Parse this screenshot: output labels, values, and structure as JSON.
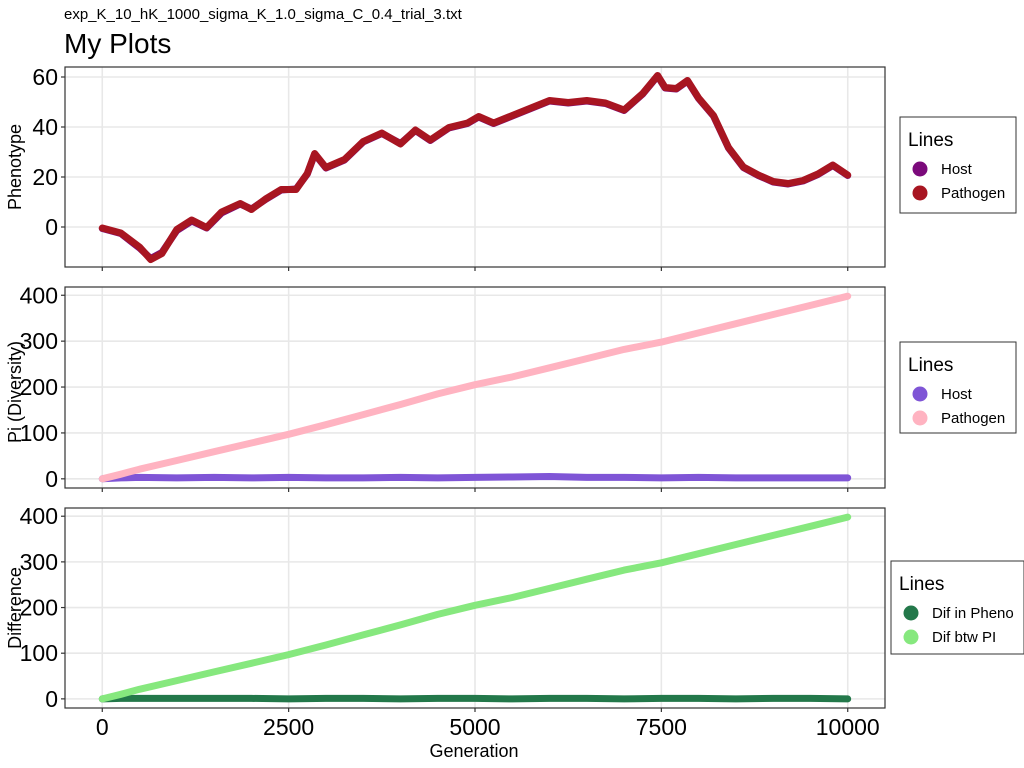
{
  "header": {
    "subtitle": "exp_K_10_hK_1000_sigma_K_1.0_sigma_C_0.4_trial_3.txt",
    "title": "My Plots"
  },
  "chart_data": [
    {
      "type": "line",
      "ylabel": "Phenotype",
      "xlabel": "",
      "xlim": [
        -500,
        10500
      ],
      "ylim": [
        -16,
        64
      ],
      "x_ticks": [
        0,
        2500,
        5000,
        7500,
        10000
      ],
      "y_ticks": [
        0,
        20,
        40,
        60
      ],
      "y_tick_labels": [
        "0",
        "20",
        "40",
        "60"
      ],
      "grid": true,
      "legend": {
        "title": "Lines",
        "position": "right"
      },
      "x": [
        0,
        250,
        500,
        650,
        800,
        1000,
        1200,
        1400,
        1600,
        1850,
        2000,
        2200,
        2400,
        2600,
        2750,
        2850,
        3000,
        3250,
        3500,
        3750,
        4000,
        4200,
        4400,
        4650,
        4900,
        5050,
        5250,
        5500,
        5750,
        6000,
        6250,
        6500,
        6750,
        7000,
        7250,
        7450,
        7550,
        7700,
        7850,
        8000,
        8200,
        8400,
        8600,
        8800,
        9000,
        9200,
        9400,
        9600,
        9800,
        10000
      ],
      "series": [
        {
          "name": "Host",
          "color": "#7B0A7B",
          "values": [
            -0.6,
            -2.6,
            -8.4,
            -12.6,
            -10.2,
            -1.4,
            2.4,
            -0.4,
            5.6,
            9.2,
            7.2,
            11.2,
            14.8,
            15.2,
            21.2,
            29.2,
            23.6,
            26.8,
            34.0,
            37.4,
            33.4,
            38.6,
            34.6,
            39.6,
            41.4,
            44.0,
            41.4,
            44.4,
            47.4,
            50.4,
            49.6,
            50.4,
            49.4,
            46.6,
            53.2,
            60.4,
            55.6,
            55.2,
            58.4,
            51.4,
            44.4,
            31.6,
            23.8,
            20.6,
            18.0,
            17.2,
            18.4,
            21.0,
            24.6,
            20.6
          ]
        },
        {
          "name": "Pathogen",
          "color": "#A81521",
          "values": [
            -0.4,
            -2.4,
            -8.0,
            -13.0,
            -10.6,
            -1.0,
            2.8,
            -0.2,
            6.0,
            9.4,
            7.0,
            11.4,
            15.0,
            15.0,
            21.4,
            29.4,
            23.8,
            27.0,
            34.2,
            37.6,
            33.2,
            38.8,
            34.8,
            39.8,
            41.6,
            44.2,
            41.6,
            44.6,
            47.6,
            50.6,
            49.8,
            50.6,
            49.6,
            46.8,
            53.4,
            60.6,
            55.8,
            55.4,
            58.6,
            51.6,
            44.6,
            31.8,
            24.0,
            20.8,
            18.2,
            17.4,
            18.6,
            21.2,
            24.8,
            20.8
          ]
        }
      ]
    },
    {
      "type": "line",
      "ylabel": "Pi (Diversity)",
      "xlabel": "",
      "xlim": [
        -500,
        10500
      ],
      "ylim": [
        -20,
        418
      ],
      "x_ticks": [
        0,
        2500,
        5000,
        7500,
        10000
      ],
      "y_ticks": [
        0,
        100,
        200,
        300,
        400
      ],
      "y_tick_labels": [
        "0",
        "100",
        "200",
        "300",
        "400"
      ],
      "grid": true,
      "legend": {
        "title": "Lines",
        "position": "right"
      },
      "x": [
        0,
        250,
        500,
        1000,
        1500,
        2000,
        2500,
        3000,
        3500,
        4000,
        4500,
        5000,
        5500,
        6000,
        6500,
        7000,
        7500,
        8000,
        8500,
        9000,
        9500,
        10000
      ],
      "series": [
        {
          "name": "Host",
          "color": "#7F55D6",
          "values": [
            0,
            2,
            3,
            2,
            3,
            2,
            3,
            2,
            2,
            3,
            2,
            3,
            4,
            5,
            3,
            3,
            2,
            3,
            2,
            2,
            2,
            2
          ]
        },
        {
          "name": "Pathogen",
          "color": "#FFB3C1",
          "values": [
            0,
            10,
            21,
            40,
            59,
            78,
            97,
            118,
            140,
            162,
            185,
            205,
            222,
            242,
            262,
            282,
            298,
            318,
            338,
            358,
            378,
            398
          ]
        }
      ]
    },
    {
      "type": "line",
      "ylabel": "Difference",
      "xlabel": "Generation",
      "xlim": [
        -500,
        10500
      ],
      "ylim": [
        -20,
        418
      ],
      "x_ticks": [
        0,
        2500,
        5000,
        7500,
        10000
      ],
      "x_tick_labels": [
        "0",
        "2500",
        "5000",
        "7500",
        "10000"
      ],
      "y_ticks": [
        0,
        100,
        200,
        300,
        400
      ],
      "y_tick_labels": [
        "0",
        "100",
        "200",
        "300",
        "400"
      ],
      "grid": true,
      "legend": {
        "title": "Lines",
        "position": "right"
      },
      "x": [
        0,
        250,
        500,
        1000,
        1500,
        2000,
        2500,
        3000,
        3500,
        4000,
        4500,
        5000,
        5500,
        6000,
        6500,
        7000,
        7500,
        8000,
        8500,
        9000,
        9500,
        10000
      ],
      "series": [
        {
          "name": "Dif in Pheno",
          "color": "#23784A",
          "values": [
            0,
            1,
            1,
            1,
            1,
            1,
            0,
            1,
            1,
            0,
            1,
            1,
            0,
            1,
            1,
            0,
            1,
            1,
            0,
            1,
            1,
            0
          ]
        },
        {
          "name": "Dif btw PI",
          "color": "#86E87E",
          "values": [
            0,
            10,
            21,
            40,
            59,
            78,
            97,
            118,
            140,
            162,
            185,
            205,
            222,
            242,
            262,
            282,
            298,
            318,
            338,
            358,
            378,
            398
          ]
        }
      ]
    }
  ]
}
